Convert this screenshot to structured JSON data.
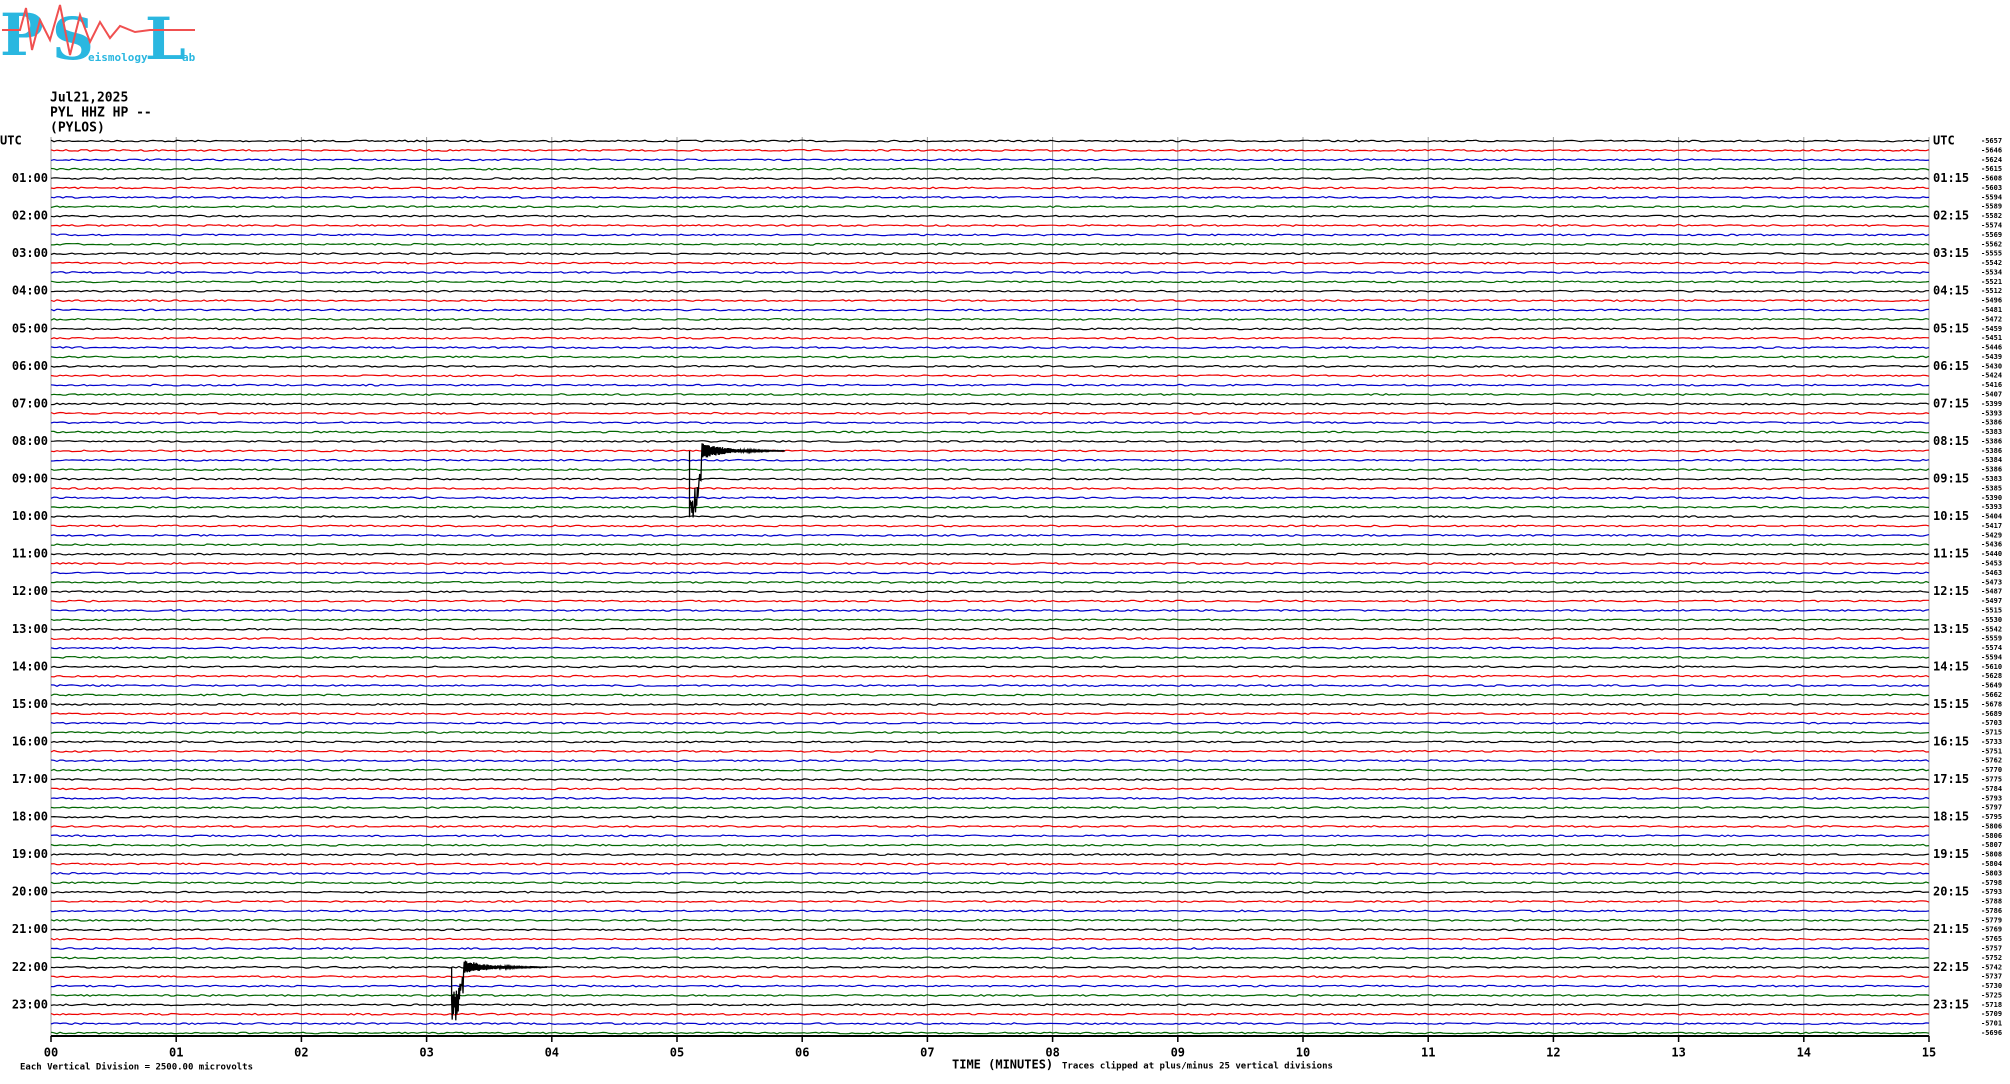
{
  "logo": {
    "p": "P",
    "s": "S",
    "l": "L",
    "word": "eismology",
    "ab": "ab"
  },
  "header": {
    "date": "Jul21,2025",
    "station": "PYL HHZ HP --",
    "location": "(PYLOS)"
  },
  "left_labels": [
    "UTC",
    "01:00",
    "02:00",
    "03:00",
    "04:00",
    "05:00",
    "06:00",
    "07:00",
    "08:00",
    "09:00",
    "10:00",
    "11:00",
    "12:00",
    "13:00",
    "14:00",
    "15:00",
    "16:00",
    "17:00",
    "18:00",
    "19:00",
    "20:00",
    "21:00",
    "22:00",
    "23:00"
  ],
  "right_labels": [
    "UTC",
    "01:15",
    "02:15",
    "03:15",
    "04:15",
    "05:15",
    "06:15",
    "07:15",
    "08:15",
    "09:15",
    "10:15",
    "11:15",
    "12:15",
    "13:15",
    "14:15",
    "15:15",
    "16:15",
    "17:15",
    "18:15",
    "19:15",
    "20:15",
    "21:15",
    "22:15",
    "23:15"
  ],
  "trace_offsets": [
    -5657,
    -5646,
    -5624,
    -5615,
    -5608,
    -5603,
    -5594,
    -5589,
    -5582,
    -5574,
    -5569,
    -5562,
    -5555,
    -5542,
    -5534,
    -5521,
    -5512,
    -5496,
    -5481,
    -5472,
    -5459,
    -5451,
    -5446,
    -5439,
    -5430,
    -5424,
    -5416,
    -5407,
    -5399,
    -5393,
    -5386,
    -5383,
    -5386,
    -5386,
    -5384,
    -5386,
    -5383,
    -5385,
    -5390,
    -5393,
    -5404,
    -5417,
    -5429,
    -5436,
    -5440,
    -5453,
    -5463,
    -5473,
    -5487,
    -5497,
    -5515,
    -5530,
    -5542,
    -5559,
    -5574,
    -5594,
    -5610,
    -5628,
    -5649,
    -5662,
    -5678,
    -5689,
    -5703,
    -5715,
    -5733,
    -5751,
    -5762,
    -5770,
    -5775,
    -5784,
    -5793,
    -5797,
    -5795,
    -5806,
    -5806,
    -5807,
    -5808,
    -5804,
    -5803,
    -5798,
    -5793,
    -5788,
    -5786,
    -5779,
    -5769,
    -5765,
    -5757,
    -5752,
    -5742,
    -5737,
    -5730,
    -5725,
    -5718,
    -5709,
    -5701,
    -5696
  ],
  "xticks": [
    "00",
    "01",
    "02",
    "03",
    "04",
    "05",
    "06",
    "07",
    "08",
    "09",
    "10",
    "11",
    "12",
    "13",
    "14",
    "15"
  ],
  "xlabel": "TIME (MINUTES)",
  "division_note": "Each Vertical Division = 2500.00 microvolts",
  "clip_note": "Traces clipped at plus/minus 25 vertical divisions"
}
